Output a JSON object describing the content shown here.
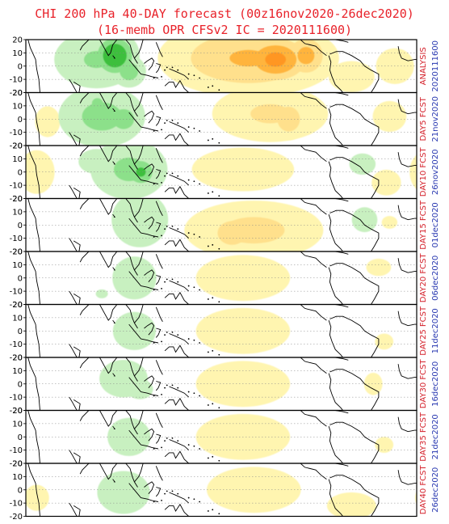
{
  "header": {
    "title_line1": "CHI 200 hPa 40-DAY forecast (00z16nov2020-26dec2020)",
    "title_line2": "(16-memb OPR CFSv2 IC = 2020111600)"
  },
  "colors": {
    "title": "#e8222a",
    "label_red": "#d4202a",
    "label_blue": "#2838b0",
    "green_light": "#c8f0c0",
    "green_mid": "#8ce08a",
    "green_dark": "#3cbf3c",
    "yellow_light": "#fff5b0",
    "yellow_mid": "#ffe08c",
    "orange": "#ffb43c",
    "orange_dark": "#ff9620"
  },
  "chart_data": {
    "type": "heatmap",
    "variable": "CHI 200 hPa",
    "ylim": [
      -20,
      20
    ],
    "yticks": [
      20,
      10,
      0,
      -10,
      -20
    ],
    "ytick_labels": [
      "20",
      "10",
      "0",
      "-10",
      "-20"
    ],
    "panels": [
      {
        "label": "ANALYSIS",
        "date": "2020111600",
        "blobs": [
          {
            "lon": 65,
            "lat": 5,
            "sx": 25,
            "sy": 14,
            "v": -1
          },
          {
            "lon": 82,
            "lat": 8,
            "sx": 11,
            "sy": 9,
            "v": -2.6
          },
          {
            "lon": 95,
            "lat": -4,
            "sx": 9,
            "sy": 7,
            "v": -1.4
          },
          {
            "lon": 205,
            "lat": 6,
            "sx": 45,
            "sy": 16,
            "v": 1.4
          },
          {
            "lon": 230,
            "lat": 5,
            "sx": 18,
            "sy": 10,
            "v": 2.3
          },
          {
            "lon": 258,
            "lat": 8,
            "sx": 12,
            "sy": 10,
            "v": 1.6
          },
          {
            "lon": 300,
            "lat": -8,
            "sx": 18,
            "sy": 10,
            "v": 0.5
          },
          {
            "lon": 340,
            "lat": 0,
            "sx": 18,
            "sy": 14,
            "v": 0.4
          }
        ]
      },
      {
        "label": "DAY5 FCST",
        "date": "21nov2020",
        "blobs": [
          {
            "lon": 70,
            "lat": 2,
            "sx": 24,
            "sy": 14,
            "v": -1.2
          },
          {
            "lon": 90,
            "lat": 0,
            "sx": 9,
            "sy": 7,
            "v": -1.6
          },
          {
            "lon": 66,
            "lat": 12,
            "sx": 8,
            "sy": 6,
            "v": -1.1
          },
          {
            "lon": 225,
            "lat": 4,
            "sx": 35,
            "sy": 14,
            "v": 0.8
          },
          {
            "lon": 242,
            "lat": 0,
            "sx": 10,
            "sy": 9,
            "v": 1.2
          },
          {
            "lon": 20,
            "lat": -2,
            "sx": 12,
            "sy": 12,
            "v": 0.4
          },
          {
            "lon": 335,
            "lat": 2,
            "sx": 16,
            "sy": 12,
            "v": 0.4
          }
        ]
      },
      {
        "label": "DAY10 FCST",
        "date": "26nov2020",
        "blobs": [
          {
            "lon": 95,
            "lat": 2,
            "sx": 22,
            "sy": 14,
            "v": -1.1
          },
          {
            "lon": 106,
            "lat": 0,
            "sx": 9,
            "sy": 7,
            "v": -1.8
          },
          {
            "lon": 65,
            "lat": 8,
            "sx": 14,
            "sy": 8,
            "v": -0.6
          },
          {
            "lon": 200,
            "lat": 2,
            "sx": 40,
            "sy": 14,
            "v": 0.5
          },
          {
            "lon": 10,
            "lat": 0,
            "sx": 14,
            "sy": 14,
            "v": 0.5
          },
          {
            "lon": 310,
            "lat": 6,
            "sx": 12,
            "sy": 8,
            "v": -0.5
          },
          {
            "lon": 332,
            "lat": -8,
            "sx": 14,
            "sy": 10,
            "v": 0.4
          }
        ]
      },
      {
        "label": "DAY15 FCST",
        "date": "01dec2020",
        "blobs": [
          {
            "lon": 105,
            "lat": 4,
            "sx": 20,
            "sy": 16,
            "v": -0.7
          },
          {
            "lon": 210,
            "lat": -4,
            "sx": 40,
            "sy": 14,
            "v": 0.9
          },
          {
            "lon": 190,
            "lat": -6,
            "sx": 12,
            "sy": 8,
            "v": 1.3
          },
          {
            "lon": 312,
            "lat": 4,
            "sx": 10,
            "sy": 8,
            "v": -0.6
          },
          {
            "lon": 335,
            "lat": 2,
            "sx": 12,
            "sy": 8,
            "v": 0.3
          }
        ]
      },
      {
        "label": "DAY20 FCST",
        "date": "06dec2020",
        "blobs": [
          {
            "lon": 100,
            "lat": 0,
            "sx": 20,
            "sy": 16,
            "v": -0.5
          },
          {
            "lon": 70,
            "lat": -12,
            "sx": 10,
            "sy": 6,
            "v": -0.35
          },
          {
            "lon": 200,
            "lat": 0,
            "sx": 40,
            "sy": 16,
            "v": 0.45
          },
          {
            "lon": 325,
            "lat": 8,
            "sx": 14,
            "sy": 8,
            "v": 0.35
          }
        ]
      },
      {
        "label": "DAY25 FCST",
        "date": "11dec2020",
        "blobs": [
          {
            "lon": 100,
            "lat": 0,
            "sx": 22,
            "sy": 16,
            "v": -0.45
          },
          {
            "lon": 200,
            "lat": 0,
            "sx": 40,
            "sy": 16,
            "v": 0.45
          },
          {
            "lon": 330,
            "lat": -8,
            "sx": 14,
            "sy": 10,
            "v": 0.3
          }
        ]
      },
      {
        "label": "DAY30 FCST",
        "date": "16dec2020",
        "blobs": [
          {
            "lon": 90,
            "lat": 4,
            "sx": 22,
            "sy": 14,
            "v": -0.5
          },
          {
            "lon": 105,
            "lat": -4,
            "sx": 16,
            "sy": 10,
            "v": -0.4
          },
          {
            "lon": 200,
            "lat": 0,
            "sx": 40,
            "sy": 16,
            "v": 0.45
          },
          {
            "lon": 320,
            "lat": 0,
            "sx": 14,
            "sy": 14,
            "v": 0.3
          }
        ]
      },
      {
        "label": "DAY35 FCST",
        "date": "21dec2020",
        "blobs": [
          {
            "lon": 95,
            "lat": 0,
            "sx": 22,
            "sy": 16,
            "v": -0.45
          },
          {
            "lon": 200,
            "lat": 0,
            "sx": 40,
            "sy": 16,
            "v": 0.45
          },
          {
            "lon": 330,
            "lat": -6,
            "sx": 14,
            "sy": 10,
            "v": 0.3
          }
        ]
      },
      {
        "label": "DAY40 FCST",
        "date": "26dec2020",
        "blobs": [
          {
            "lon": 90,
            "lat": -2,
            "sx": 24,
            "sy": 16,
            "v": -0.5
          },
          {
            "lon": 210,
            "lat": 0,
            "sx": 40,
            "sy": 16,
            "v": 0.45
          },
          {
            "lon": 300,
            "lat": -12,
            "sx": 18,
            "sy": 8,
            "v": 0.55
          },
          {
            "lon": 10,
            "lat": -6,
            "sx": 14,
            "sy": 12,
            "v": 0.35
          }
        ]
      }
    ]
  }
}
